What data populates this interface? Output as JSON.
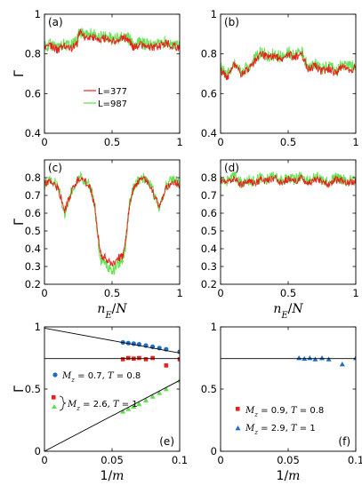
{
  "colors": {
    "red": "#e8211c",
    "green": "#5fe04a",
    "blue": "#1f6fc1",
    "black": "#000000"
  },
  "chart_data": [
    {
      "id": "a",
      "type": "line",
      "panel_label": "(a)",
      "ylabel": "Γ",
      "ylim": [
        0.4,
        1.0
      ],
      "xlim": [
        0,
        1
      ],
      "yticks": [
        "0.4",
        "0.6",
        "0.8",
        "1"
      ],
      "xticks": [
        "0",
        "0.5",
        "1"
      ],
      "legend": {
        "placement": "center-left",
        "entries": [
          "L=377",
          "L=987"
        ]
      },
      "series": [
        {
          "name": "L=377",
          "color": "red",
          "x": [
            0,
            0.05,
            0.1,
            0.15,
            0.2,
            0.24,
            0.26,
            0.3,
            0.35,
            0.4,
            0.45,
            0.5,
            0.55,
            0.6,
            0.63,
            0.66,
            0.7,
            0.75,
            0.8,
            0.85,
            0.9,
            0.95,
            1
          ],
          "y": [
            0.83,
            0.84,
            0.82,
            0.84,
            0.83,
            0.85,
            0.91,
            0.88,
            0.89,
            0.87,
            0.88,
            0.86,
            0.87,
            0.88,
            0.86,
            0.83,
            0.85,
            0.84,
            0.83,
            0.84,
            0.85,
            0.84,
            0.83
          ]
        },
        {
          "name": "L=987",
          "color": "green",
          "x": [
            0,
            0.05,
            0.1,
            0.15,
            0.2,
            0.24,
            0.26,
            0.3,
            0.35,
            0.4,
            0.45,
            0.5,
            0.55,
            0.6,
            0.63,
            0.66,
            0.7,
            0.75,
            0.8,
            0.85,
            0.9,
            0.95,
            1
          ],
          "y": [
            0.84,
            0.85,
            0.83,
            0.85,
            0.84,
            0.86,
            0.92,
            0.89,
            0.9,
            0.88,
            0.89,
            0.87,
            0.88,
            0.89,
            0.87,
            0.84,
            0.86,
            0.85,
            0.84,
            0.85,
            0.86,
            0.85,
            0.84
          ]
        }
      ]
    },
    {
      "id": "b",
      "type": "line",
      "panel_label": "(b)",
      "ylabel": "",
      "ylim": [
        0.4,
        1.0
      ],
      "xlim": [
        0,
        1
      ],
      "yticks": [
        "0.4",
        "0.6",
        "0.8",
        "1"
      ],
      "xticks": [
        "0",
        "0.5",
        "1"
      ],
      "series": [
        {
          "name": "L=377",
          "color": "red",
          "x": [
            0,
            0.05,
            0.1,
            0.15,
            0.2,
            0.25,
            0.3,
            0.35,
            0.4,
            0.45,
            0.5,
            0.55,
            0.6,
            0.65,
            0.7,
            0.75,
            0.8,
            0.85,
            0.9,
            0.95,
            1
          ],
          "y": [
            0.72,
            0.68,
            0.74,
            0.7,
            0.72,
            0.76,
            0.8,
            0.78,
            0.79,
            0.77,
            0.8,
            0.78,
            0.8,
            0.72,
            0.74,
            0.71,
            0.73,
            0.7,
            0.74,
            0.72,
            0.73
          ]
        },
        {
          "name": "L=987",
          "color": "green",
          "x": [
            0,
            0.05,
            0.1,
            0.15,
            0.2,
            0.25,
            0.3,
            0.35,
            0.4,
            0.45,
            0.5,
            0.55,
            0.6,
            0.65,
            0.7,
            0.75,
            0.8,
            0.85,
            0.9,
            0.95,
            1
          ],
          "y": [
            0.73,
            0.69,
            0.75,
            0.71,
            0.73,
            0.77,
            0.81,
            0.79,
            0.8,
            0.78,
            0.81,
            0.79,
            0.81,
            0.73,
            0.75,
            0.72,
            0.74,
            0.71,
            0.75,
            0.73,
            0.74
          ]
        }
      ]
    },
    {
      "id": "c",
      "type": "line",
      "panel_label": "(c)",
      "ylabel": "Γ",
      "xlabel": "n_E/N",
      "ylim": [
        0.2,
        0.9
      ],
      "xlim": [
        0,
        1
      ],
      "yticks": [
        "0.2",
        "0.3",
        "0.4",
        "0.5",
        "0.6",
        "0.7",
        "0.8"
      ],
      "xticks": [
        "0",
        "0.5",
        "1"
      ],
      "series": [
        {
          "name": "L=377",
          "color": "red",
          "x": [
            0,
            0.05,
            0.1,
            0.15,
            0.2,
            0.25,
            0.3,
            0.34,
            0.37,
            0.4,
            0.42,
            0.45,
            0.5,
            0.55,
            0.58,
            0.6,
            0.63,
            0.66,
            0.7,
            0.75,
            0.8,
            0.85,
            0.9,
            0.95,
            1
          ],
          "y": [
            0.76,
            0.78,
            0.74,
            0.62,
            0.72,
            0.79,
            0.78,
            0.74,
            0.65,
            0.45,
            0.36,
            0.35,
            0.31,
            0.35,
            0.36,
            0.45,
            0.65,
            0.74,
            0.78,
            0.79,
            0.72,
            0.64,
            0.74,
            0.78,
            0.76
          ]
        },
        {
          "name": "L=987",
          "color": "green",
          "x": [
            0,
            0.05,
            0.1,
            0.15,
            0.2,
            0.25,
            0.3,
            0.34,
            0.37,
            0.4,
            0.42,
            0.45,
            0.5,
            0.55,
            0.58,
            0.6,
            0.63,
            0.66,
            0.7,
            0.75,
            0.8,
            0.85,
            0.9,
            0.95,
            1
          ],
          "y": [
            0.77,
            0.79,
            0.75,
            0.6,
            0.73,
            0.8,
            0.79,
            0.75,
            0.66,
            0.42,
            0.33,
            0.32,
            0.27,
            0.32,
            0.33,
            0.42,
            0.66,
            0.75,
            0.79,
            0.8,
            0.73,
            0.62,
            0.75,
            0.79,
            0.77
          ]
        }
      ]
    },
    {
      "id": "d",
      "type": "line",
      "panel_label": "(d)",
      "ylabel": "",
      "xlabel": "n_E/N",
      "ylim": [
        0.2,
        0.9
      ],
      "xlim": [
        0,
        1
      ],
      "yticks": [
        "0.2",
        "0.3",
        "0.4",
        "0.5",
        "0.6",
        "0.7",
        "0.8"
      ],
      "xticks": [
        "0",
        "0.5",
        "1"
      ],
      "series": [
        {
          "name": "L=377",
          "color": "red",
          "x": [
            0,
            0.05,
            0.1,
            0.15,
            0.2,
            0.25,
            0.3,
            0.35,
            0.4,
            0.45,
            0.5,
            0.55,
            0.6,
            0.65,
            0.7,
            0.75,
            0.8,
            0.85,
            0.9,
            0.95,
            1
          ],
          "y": [
            0.78,
            0.77,
            0.8,
            0.76,
            0.78,
            0.77,
            0.79,
            0.78,
            0.8,
            0.77,
            0.79,
            0.78,
            0.8,
            0.77,
            0.79,
            0.78,
            0.76,
            0.79,
            0.78,
            0.77,
            0.78
          ]
        },
        {
          "name": "L=987",
          "color": "green",
          "x": [
            0,
            0.05,
            0.1,
            0.15,
            0.2,
            0.25,
            0.3,
            0.35,
            0.4,
            0.45,
            0.5,
            0.55,
            0.6,
            0.65,
            0.7,
            0.75,
            0.8,
            0.85,
            0.9,
            0.95,
            1
          ],
          "y": [
            0.79,
            0.78,
            0.81,
            0.77,
            0.79,
            0.78,
            0.8,
            0.79,
            0.81,
            0.78,
            0.8,
            0.79,
            0.81,
            0.78,
            0.8,
            0.79,
            0.77,
            0.8,
            0.79,
            0.78,
            0.79
          ]
        }
      ]
    },
    {
      "id": "e",
      "type": "scatter",
      "panel_label": "(e)",
      "ylabel": "Γ̄",
      "xlabel": "1/m",
      "xlim": [
        0,
        0.1
      ],
      "ylim": [
        0,
        1
      ],
      "xticks": [
        "0",
        "0.05",
        "0.1"
      ],
      "yticks": [
        "0",
        "0.5",
        "1"
      ],
      "legend": {
        "placement": "center-left",
        "entries": [
          "M_z = 0.7, T = 0.8",
          "M_z = 2.6, T = 1"
        ]
      },
      "series": [
        {
          "name": "M_z = 0.7, T = 0.8",
          "color": "blue",
          "marker": "circle",
          "x": [
            0.058,
            0.062,
            0.066,
            0.07,
            0.075,
            0.08,
            0.085,
            0.09,
            0.1
          ],
          "y": [
            0.875,
            0.87,
            0.865,
            0.86,
            0.85,
            0.84,
            0.83,
            0.82,
            0.8
          ]
        },
        {
          "name": "M_z = 2.6, T = 1",
          "color": "red",
          "marker": "square",
          "x": [
            0.058,
            0.062,
            0.066,
            0.07,
            0.075,
            0.08,
            0.09,
            0.1
          ],
          "y": [
            0.74,
            0.75,
            0.745,
            0.75,
            0.74,
            0.75,
            0.69,
            0.74
          ]
        },
        {
          "name": "",
          "color": "green",
          "marker": "triangle",
          "x": [
            0.058,
            0.062,
            0.066,
            0.07,
            0.075,
            0.08,
            0.085,
            0.09,
            0.1
          ],
          "y": [
            0.32,
            0.34,
            0.36,
            0.38,
            0.41,
            0.44,
            0.47,
            0.5,
            0.57
          ]
        }
      ],
      "lines": [
        {
          "x": [
            0,
            0.1
          ],
          "y": [
            0.99,
            0.79
          ]
        },
        {
          "x": [
            0,
            0.1
          ],
          "y": [
            0.745,
            0.745
          ]
        },
        {
          "x": [
            0,
            0.1
          ],
          "y": [
            0.0,
            0.57
          ]
        }
      ]
    },
    {
      "id": "f",
      "type": "scatter",
      "panel_label": "(f)",
      "ylabel": "",
      "xlabel": "1/m",
      "xlim": [
        0,
        0.1
      ],
      "ylim": [
        0,
        1
      ],
      "xticks": [
        "0",
        "0.05",
        "0.1"
      ],
      "yticks": [
        "0",
        "0.5",
        "1"
      ],
      "legend": {
        "placement": "center-left",
        "entries": [
          "M_z = 0.9, T = 0.8",
          "M_z = 2.9, T = 1"
        ]
      },
      "series": [
        {
          "name": "M_z = 0.9, T = 0.8",
          "color": "red",
          "marker": "square",
          "x": [],
          "y": []
        },
        {
          "name": "M_z = 2.9, T = 1",
          "color": "blue",
          "marker": "triangle",
          "x": [
            0.058,
            0.062,
            0.066,
            0.07,
            0.075,
            0.08,
            0.09,
            0.1
          ],
          "y": [
            0.75,
            0.745,
            0.75,
            0.74,
            0.75,
            0.74,
            0.7,
            0.75
          ]
        }
      ],
      "lines": [
        {
          "x": [
            0,
            0.1
          ],
          "y": [
            0.745,
            0.745
          ]
        }
      ]
    }
  ]
}
